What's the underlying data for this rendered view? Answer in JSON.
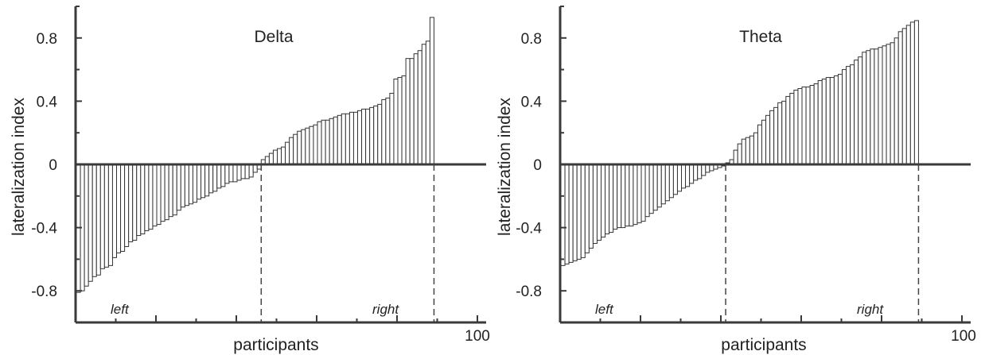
{
  "chart_data": [
    {
      "type": "bar",
      "title": "Delta",
      "xlabel": "participants",
      "ylabel": "lateralization index",
      "ylim": [
        -1.0,
        1.0
      ],
      "xlim": [
        0,
        100
      ],
      "y_ticks": [
        -0.8,
        -0.4,
        0,
        0.4,
        0.8
      ],
      "y_tick_labels": [
        "-0.8",
        "-0.4",
        "0",
        "0.4",
        "0.8"
      ],
      "x_tick_labels": [
        "100"
      ],
      "region_labels": [
        "left",
        "right"
      ],
      "grid": false,
      "bar_fill": "#ffffff",
      "bar_stroke": "#333333",
      "values": [
        -0.81,
        -0.8,
        -0.77,
        -0.74,
        -0.71,
        -0.7,
        -0.66,
        -0.65,
        -0.64,
        -0.59,
        -0.56,
        -0.55,
        -0.52,
        -0.49,
        -0.48,
        -0.45,
        -0.44,
        -0.42,
        -0.41,
        -0.39,
        -0.38,
        -0.36,
        -0.35,
        -0.33,
        -0.32,
        -0.29,
        -0.27,
        -0.26,
        -0.25,
        -0.24,
        -0.22,
        -0.21,
        -0.2,
        -0.18,
        -0.17,
        -0.15,
        -0.14,
        -0.12,
        -0.11,
        -0.11,
        -0.1,
        -0.09,
        -0.09,
        -0.08,
        -0.05,
        -0.03,
        0.03,
        0.05,
        0.07,
        0.09,
        0.1,
        0.11,
        0.14,
        0.17,
        0.19,
        0.21,
        0.22,
        0.23,
        0.24,
        0.25,
        0.27,
        0.28,
        0.28,
        0.29,
        0.3,
        0.31,
        0.32,
        0.32,
        0.33,
        0.33,
        0.34,
        0.35,
        0.35,
        0.36,
        0.37,
        0.38,
        0.41,
        0.42,
        0.45,
        0.54,
        0.55,
        0.56,
        0.67,
        0.67,
        0.7,
        0.72,
        0.76,
        0.78,
        0.93
      ]
    },
    {
      "type": "bar",
      "title": "Theta",
      "xlabel": "participants",
      "ylabel": "lateralization index",
      "ylim": [
        -1.0,
        1.0
      ],
      "xlim": [
        0,
        100
      ],
      "y_ticks": [
        -0.8,
        -0.4,
        0,
        0.4,
        0.8
      ],
      "y_tick_labels": [
        "-0.8",
        "-0.4",
        "0",
        "0.4",
        "0.8"
      ],
      "x_tick_labels": [
        "100"
      ],
      "region_labels": [
        "left",
        "right"
      ],
      "grid": false,
      "bar_fill": "#ffffff",
      "bar_stroke": "#333333",
      "values": [
        -0.64,
        -0.63,
        -0.62,
        -0.61,
        -0.6,
        -0.59,
        -0.56,
        -0.53,
        -0.5,
        -0.48,
        -0.46,
        -0.44,
        -0.43,
        -0.41,
        -0.4,
        -0.4,
        -0.39,
        -0.39,
        -0.38,
        -0.37,
        -0.36,
        -0.33,
        -0.31,
        -0.29,
        -0.27,
        -0.25,
        -0.23,
        -0.21,
        -0.19,
        -0.17,
        -0.15,
        -0.14,
        -0.12,
        -0.1,
        -0.09,
        -0.07,
        -0.05,
        -0.04,
        -0.03,
        -0.02,
        -0.01,
        0.01,
        0.03,
        0.09,
        0.13,
        0.16,
        0.17,
        0.18,
        0.2,
        0.25,
        0.28,
        0.31,
        0.34,
        0.36,
        0.39,
        0.4,
        0.43,
        0.45,
        0.47,
        0.48,
        0.49,
        0.49,
        0.5,
        0.51,
        0.53,
        0.54,
        0.55,
        0.55,
        0.56,
        0.57,
        0.6,
        0.62,
        0.63,
        0.66,
        0.68,
        0.71,
        0.72,
        0.73,
        0.73,
        0.74,
        0.75,
        0.76,
        0.77,
        0.8,
        0.84,
        0.86,
        0.88,
        0.9,
        0.91
      ]
    }
  ]
}
